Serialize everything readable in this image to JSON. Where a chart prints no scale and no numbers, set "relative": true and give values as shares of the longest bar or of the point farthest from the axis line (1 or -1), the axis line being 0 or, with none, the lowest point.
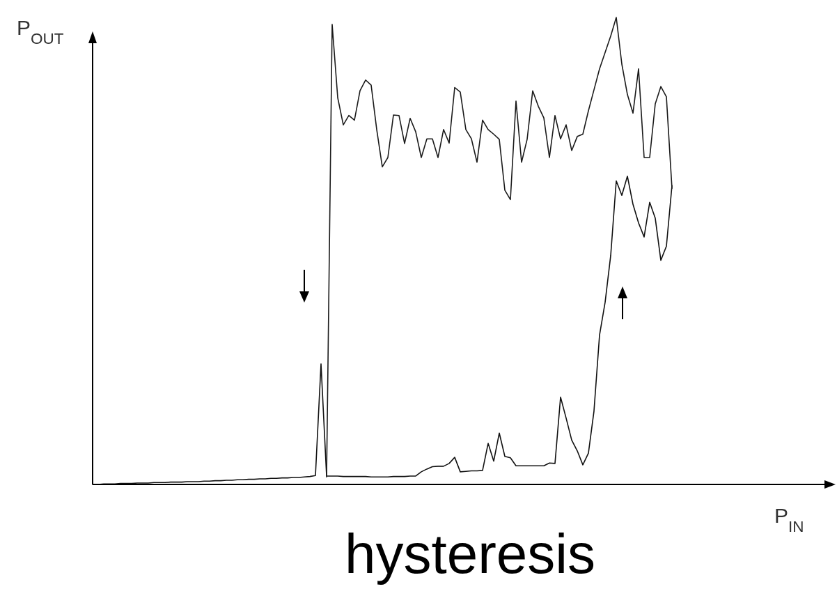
{
  "chart_data": {
    "type": "line",
    "title": "hysteresis",
    "xlabel": "P$_{IN}$",
    "ylabel": "P$_{OUT}$",
    "relative": true,
    "marker": "none",
    "line_style": "solid",
    "categories": [
      null,
      null,
      null,
      null,
      null,
      null,
      null,
      null,
      null,
      null,
      null,
      null,
      null,
      null,
      null,
      null,
      null,
      null,
      null,
      null,
      null,
      null,
      null,
      null,
      null,
      null,
      null,
      null,
      null,
      null,
      null,
      null,
      null,
      null,
      null,
      null,
      null,
      null,
      null,
      null,
      null,
      null,
      null,
      null,
      null,
      null,
      null,
      null,
      null,
      null,
      null,
      null,
      null,
      null,
      null,
      null,
      null,
      null,
      null,
      null,
      null,
      null,
      null,
      null,
      null,
      null,
      null,
      null,
      null,
      null,
      null,
      null,
      null,
      null,
      null,
      null,
      null,
      null,
      null,
      null,
      null,
      null,
      null,
      null,
      null,
      null,
      null,
      null,
      null,
      null,
      null,
      null,
      null,
      null,
      null,
      null,
      null,
      null,
      null,
      null,
      null,
      null,
      null,
      null,
      null
    ],
    "series": [
      {
        "color": "#111111",
        "values": [
          0,
          0.0,
          0.001,
          0.001,
          0.001,
          0.002,
          0.002,
          0.002,
          0.003,
          0.003,
          0.003,
          0.004,
          0.004,
          0.004,
          0.005,
          0.005,
          0.005,
          0.006,
          0.006,
          0.006,
          0.007,
          0.007,
          0.008,
          0.008,
          0.009,
          0.009,
          0.01,
          0.01,
          0.011,
          0.011,
          0.012,
          0.012,
          0.013,
          0.013,
          0.014,
          0.014,
          0.015,
          0.015,
          0.016,
          0.017,
          0.019,
          0.258,
          0.018,
          0.018,
          0.018,
          0.017,
          0.017,
          0.017,
          0.017,
          0.017,
          0.016,
          0.016,
          0.016,
          0.016,
          0.017,
          0.017,
          0.017,
          0.018,
          0.018,
          0.027,
          0.033,
          0.038,
          0.039,
          0.039,
          0.045,
          0.058,
          0.027,
          0.028,
          0.029,
          0.029,
          0.03,
          0.088,
          0.05,
          0.11,
          0.06,
          0.057,
          0.04,
          0.04,
          0.04,
          0.04,
          0.04,
          0.04,
          0.046,
          0.045,
          0.187,
          0.142,
          0.095,
          0.072,
          0.042,
          0.067,
          0.157,
          0.32,
          0.39,
          0.49,
          0.65,
          0.619,
          0.66,
          0.6,
          0.56,
          0.53,
          0.604,
          0.57,
          0.48,
          0.51,
          0.64
        ]
      },
      {
        "color": "#1a1a1a",
        "values": [
          null,
          null,
          null,
          null,
          null,
          null,
          null,
          null,
          null,
          null,
          null,
          null,
          null,
          null,
          null,
          null,
          null,
          null,
          null,
          null,
          null,
          null,
          null,
          null,
          null,
          null,
          null,
          null,
          null,
          null,
          null,
          null,
          null,
          null,
          null,
          null,
          null,
          null,
          null,
          null,
          null,
          null,
          0.016,
          0.985,
          0.828,
          0.77,
          0.79,
          0.78,
          0.843,
          0.866,
          0.855,
          0.76,
          0.68,
          0.7,
          0.791,
          0.79,
          0.73,
          0.784,
          0.755,
          0.7,
          0.74,
          0.74,
          0.7,
          0.76,
          0.731,
          0.85,
          0.84,
          0.76,
          0.74,
          0.69,
          0.78,
          0.76,
          0.75,
          0.739,
          0.63,
          0.61,
          0.821,
          0.69,
          0.739,
          0.843,
          0.81,
          0.785,
          0.7,
          0.79,
          0.74,
          0.77,
          0.715,
          0.745,
          0.75,
          0.8,
          0.845,
          0.89,
          0.925,
          0.96,
          1,
          0.9,
          0.835,
          0.795,
          0.89,
          0.7,
          0.7,
          0.815,
          0.852,
          0.83,
          0.634
        ]
      }
    ]
  }
}
